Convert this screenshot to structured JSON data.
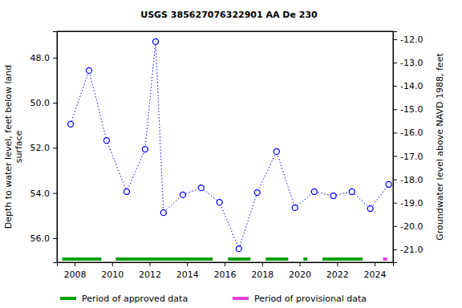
{
  "chart_data": {
    "type": "line",
    "title": "USGS 385627076322901 AA De 230",
    "ylabel": [
      "Depth to water level, feet below land",
      "surface"
    ],
    "y2label": "Groundwater level above NAVD 1988, feet",
    "x": [
      2007.79,
      2008.77,
      2009.71,
      2010.78,
      2011.76,
      2012.32,
      2012.74,
      2013.77,
      2014.75,
      2015.73,
      2016.76,
      2017.74,
      2018.77,
      2019.75,
      2020.78,
      2021.8,
      2022.79,
      2023.77,
      2024.75
    ],
    "values": [
      50.95,
      48.57,
      51.67,
      53.94,
      52.06,
      47.29,
      54.87,
      54.08,
      53.77,
      54.41,
      56.47,
      53.98,
      52.16,
      54.65,
      53.94,
      54.12,
      53.94,
      54.69,
      53.62
    ],
    "color": "#0000ff",
    "marker": "circle",
    "line_style": "dotted",
    "grid": false,
    "xlim": [
      2007.06,
      2024.98
    ],
    "xticks": [
      2008,
      2010,
      2012,
      2014,
      2016,
      2018,
      2020,
      2022,
      2024
    ],
    "ylim": [
      46.83,
      57.07
    ],
    "yticks": [
      {
        "value": 48,
        "label": "48.0"
      },
      {
        "value": 50,
        "label": "50.0"
      },
      {
        "value": 52,
        "label": "52.0"
      },
      {
        "value": 54,
        "label": "54.0"
      },
      {
        "value": 56,
        "label": "56.0"
      }
    ],
    "y2lim": [
      -11.66,
      -21.55
    ],
    "y2ticks": [
      {
        "value": -12,
        "label": "-12.0"
      },
      {
        "value": -13,
        "label": "-13.0"
      },
      {
        "value": -14,
        "label": "-14.0"
      },
      {
        "value": -15,
        "label": "-15.0"
      },
      {
        "value": -16,
        "label": "-16.0"
      },
      {
        "value": -17,
        "label": "-17.0"
      },
      {
        "value": -18,
        "label": "-18.0"
      },
      {
        "value": -19,
        "label": "-19.0"
      },
      {
        "value": -20,
        "label": "-20.0"
      },
      {
        "value": -21,
        "label": "-21.0"
      }
    ],
    "periods": [
      {
        "name": "Period of approved data",
        "color": "#00a000",
        "ranges": [
          [
            2007.34,
            2009.43
          ],
          [
            2010.2,
            2015.37
          ],
          [
            2016.18,
            2017.38
          ],
          [
            2018.19,
            2019.39
          ],
          [
            2020.2,
            2020.41
          ],
          [
            2021.22,
            2023.36
          ]
        ]
      },
      {
        "name": "Period of provisional data",
        "color": "#e040e0",
        "ranges": [
          [
            2024.45,
            2024.66
          ]
        ]
      }
    ]
  }
}
